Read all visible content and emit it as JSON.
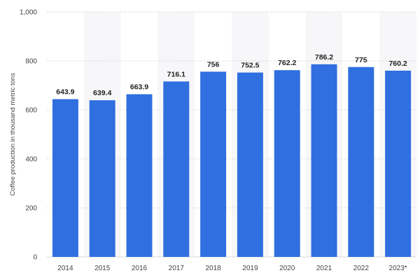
{
  "chart_data": {
    "type": "bar",
    "categories": [
      "2014",
      "2015",
      "2016",
      "2017",
      "2018",
      "2019",
      "2020",
      "2021",
      "2022",
      "2023*"
    ],
    "values": [
      643.9,
      639.4,
      663.9,
      716.1,
      756,
      752.5,
      762.2,
      786.2,
      775,
      760.2
    ],
    "value_labels": [
      "643.9",
      "639.4",
      "663.9",
      "716.1",
      "756",
      "752.5",
      "762.2",
      "786.2",
      "775",
      "760.2"
    ],
    "title": "",
    "xlabel": "",
    "ylabel": "Coffee production in thousand metric tons",
    "ylim": [
      0,
      1000
    ],
    "yticks": [
      0,
      200,
      400,
      600,
      800,
      1000
    ],
    "ytick_labels": [
      "0",
      "200",
      "400",
      "600",
      "800",
      "1,000"
    ],
    "grid": true,
    "alternate_column_shading": true,
    "legend": "none",
    "colors": {
      "bar": "#2f6fdf",
      "grid": "#d9d9d9",
      "band": "#f7f7f9",
      "axis_text": "#444444",
      "label_text": "#222222"
    }
  }
}
